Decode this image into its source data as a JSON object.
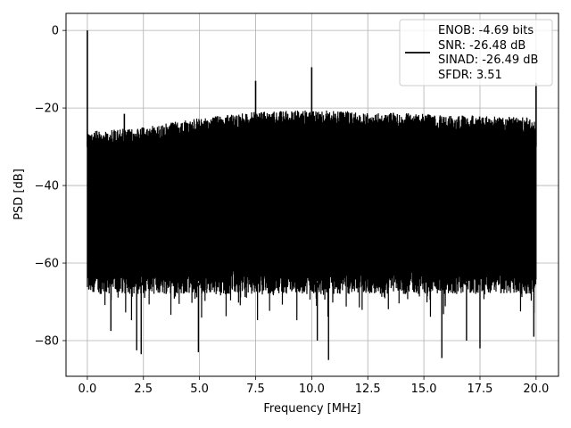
{
  "chart_data": {
    "type": "line",
    "title": "",
    "xlabel": "Frequency [MHz]",
    "ylabel": "PSD [dB]",
    "xlim": [
      -0.95,
      21.0
    ],
    "ylim": [
      -89.2,
      4.4
    ],
    "xticks": [
      0.0,
      2.5,
      5.0,
      7.5,
      10.0,
      12.5,
      15.0,
      17.5,
      20.0
    ],
    "xtick_labels": [
      "0.0",
      "2.5",
      "5.0",
      "7.5",
      "10.0",
      "12.5",
      "15.0",
      "17.5",
      "20.0"
    ],
    "yticks": [
      0,
      -20,
      -40,
      -60,
      -80
    ],
    "ytick_labels": [
      "0",
      "−20",
      "−40",
      "−60",
      "−80"
    ],
    "grid": true,
    "legend_position": "top-right",
    "legend_entries": [
      "ENOB: -4.69 bits",
      "SNR: -26.48 dB",
      "SINAD: -26.49 dB",
      "SFDR: 3.51"
    ],
    "series": [
      {
        "color": "#000000",
        "peaks": [
          {
            "x": 0.0,
            "y": 0.0
          },
          {
            "x": 1.65,
            "y": -21.5
          },
          {
            "x": 7.5,
            "y": -13.0
          },
          {
            "x": 10.0,
            "y": -9.5
          },
          {
            "x": 20.0,
            "y": -13.5
          }
        ],
        "noise_floor_top": [
          {
            "x": 0.0,
            "y": -26.0
          },
          {
            "x": 2.5,
            "y": -25.0
          },
          {
            "x": 5.0,
            "y": -22.5
          },
          {
            "x": 7.5,
            "y": -21.0
          },
          {
            "x": 10.0,
            "y": -20.5
          },
          {
            "x": 12.5,
            "y": -21.0
          },
          {
            "x": 15.0,
            "y": -21.5
          },
          {
            "x": 17.5,
            "y": -22.0
          },
          {
            "x": 20.0,
            "y": -22.5
          }
        ],
        "dense_band_bottom": -65.0,
        "deep_minima": [
          {
            "x": 1.05,
            "y": -77.5
          },
          {
            "x": 2.2,
            "y": -82.5
          },
          {
            "x": 2.4,
            "y": -83.5
          },
          {
            "x": 4.95,
            "y": -83.0
          },
          {
            "x": 10.25,
            "y": -80.0
          },
          {
            "x": 10.75,
            "y": -85.0
          },
          {
            "x": 15.8,
            "y": -84.5
          },
          {
            "x": 16.9,
            "y": -80.0
          },
          {
            "x": 17.5,
            "y": -82.0
          },
          {
            "x": 19.9,
            "y": -79.0
          }
        ]
      }
    ]
  }
}
